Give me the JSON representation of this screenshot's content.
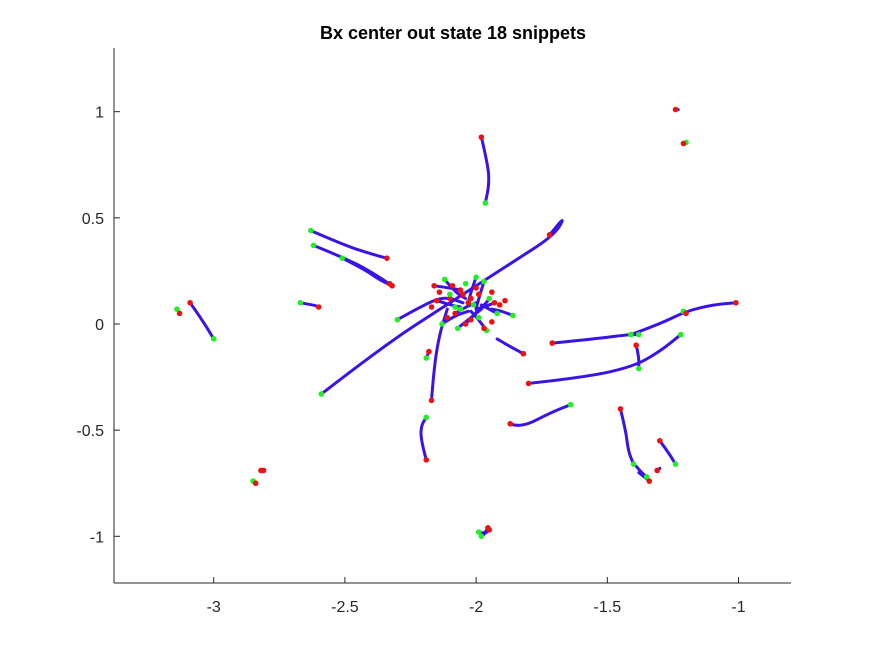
{
  "chart_data": {
    "type": "line",
    "title": "Bx  center out state 18 snippets",
    "xlabel": "",
    "ylabel": "",
    "xlim": [
      -3.38,
      -0.8
    ],
    "ylim": [
      -1.22,
      1.3
    ],
    "xticks": [
      -3,
      -2.5,
      -2,
      -1.5,
      -1
    ],
    "yticks": [
      -1,
      -0.5,
      0,
      0.5,
      1
    ],
    "xtick_labels": [
      "-3",
      "-2.5",
      "-2",
      "-1.5",
      "-1"
    ],
    "ytick_labels": [
      "-1",
      "-0.5",
      "0",
      "0.5",
      "1"
    ],
    "grid": false,
    "box": "left-bottom axes only",
    "colors": {
      "trajectory": "#3a14e6",
      "start_marker": "#22ee22",
      "end_marker": "#ee1111",
      "axis": "#262626"
    },
    "series": [
      {
        "points": [
          [
            -1.98,
            0.88
          ],
          [
            -1.955,
            0.75
          ],
          [
            -1.95,
            0.66
          ],
          [
            -1.965,
            0.57
          ]
        ]
      },
      {
        "points": [
          [
            -2.63,
            0.44
          ],
          [
            -2.5,
            0.37
          ],
          [
            -2.4,
            0.33
          ],
          [
            -2.34,
            0.31
          ]
        ]
      },
      {
        "points": [
          [
            -2.62,
            0.37
          ],
          [
            -2.48,
            0.3
          ],
          [
            -2.38,
            0.23
          ],
          [
            -2.32,
            0.18
          ]
        ]
      },
      {
        "points": [
          [
            -2.51,
            0.31
          ],
          [
            -2.43,
            0.26
          ],
          [
            -2.37,
            0.21
          ],
          [
            -2.33,
            0.185
          ]
        ]
      },
      {
        "points": [
          [
            -2.59,
            -0.33
          ],
          [
            -2.35,
            -0.1
          ],
          [
            -2.1,
            0.1
          ],
          [
            -1.85,
            0.3
          ],
          [
            -1.7,
            0.42
          ],
          [
            -1.66,
            0.51
          ],
          [
            -1.72,
            0.42
          ]
        ]
      },
      {
        "points": [
          [
            -2.67,
            0.1
          ],
          [
            -2.62,
            0.09
          ],
          [
            -2.6,
            0.08
          ]
        ]
      },
      {
        "points": [
          [
            -3.09,
            0.1
          ],
          [
            -3.05,
            0.03
          ],
          [
            -3.0,
            -0.07
          ]
        ]
      },
      {
        "points": [
          [
            -3.14,
            0.07
          ],
          [
            -3.13,
            0.05
          ]
        ]
      },
      {
        "points": [
          [
            -2.3,
            0.02
          ],
          [
            -2.2,
            0.09
          ],
          [
            -2.12,
            0.13
          ],
          [
            -2.05,
            0.1
          ]
        ]
      },
      {
        "points": [
          [
            -2.19,
            -0.16
          ],
          [
            -2.18,
            -0.13
          ]
        ]
      },
      {
        "points": [
          [
            -2.17,
            -0.36
          ],
          [
            -2.16,
            -0.2
          ],
          [
            -2.14,
            -0.05
          ],
          [
            -2.11,
            0.07
          ]
        ]
      },
      {
        "points": [
          [
            -2.19,
            -0.64
          ],
          [
            -2.21,
            -0.55
          ],
          [
            -2.21,
            -0.48
          ],
          [
            -2.19,
            -0.44
          ]
        ]
      },
      {
        "points": [
          [
            -1.82,
            -0.14
          ],
          [
            -1.88,
            -0.1
          ],
          [
            -1.92,
            -0.07
          ]
        ]
      },
      {
        "points": [
          [
            -1.87,
            -0.47
          ],
          [
            -1.83,
            -0.49
          ],
          [
            -1.72,
            -0.42
          ],
          [
            -1.64,
            -0.38
          ]
        ]
      },
      {
        "points": [
          [
            -1.8,
            -0.28
          ],
          [
            -1.58,
            -0.25
          ],
          [
            -1.4,
            -0.2
          ],
          [
            -1.3,
            -0.13
          ],
          [
            -1.22,
            -0.05
          ]
        ]
      },
      {
        "points": [
          [
            -1.71,
            -0.09
          ],
          [
            -1.55,
            -0.07
          ],
          [
            -1.42,
            -0.05
          ],
          [
            -1.38,
            -0.05
          ]
        ]
      },
      {
        "points": [
          [
            -1.41,
            -0.05
          ],
          [
            -1.3,
            0.0
          ],
          [
            -1.2,
            0.06
          ],
          [
            -1.1,
            0.09
          ],
          [
            -1.01,
            0.1
          ]
        ]
      },
      {
        "points": [
          [
            -1.39,
            -0.1
          ],
          [
            -1.38,
            -0.15
          ],
          [
            -1.38,
            -0.21
          ]
        ]
      },
      {
        "points": [
          [
            -1.21,
            0.06
          ],
          [
            -1.2,
            0.05
          ]
        ]
      },
      {
        "points": [
          [
            -1.45,
            -0.4
          ],
          [
            -1.43,
            -0.5
          ],
          [
            -1.42,
            -0.6
          ],
          [
            -1.4,
            -0.66
          ]
        ]
      },
      {
        "points": [
          [
            -1.39,
            -0.67
          ],
          [
            -1.37,
            -0.7
          ],
          [
            -1.35,
            -0.72
          ]
        ]
      },
      {
        "points": [
          [
            -1.38,
            -0.7
          ],
          [
            -1.36,
            -0.72
          ],
          [
            -1.34,
            -0.74
          ]
        ]
      },
      {
        "points": [
          [
            -1.3,
            -0.55
          ],
          [
            -1.27,
            -0.6
          ],
          [
            -1.24,
            -0.66
          ]
        ]
      },
      {
        "points": [
          [
            -1.31,
            -0.69
          ],
          [
            -1.3,
            -0.68
          ]
        ]
      },
      {
        "points": [
          [
            -2.85,
            -0.74
          ],
          [
            -2.84,
            -0.75
          ]
        ]
      },
      {
        "points": [
          [
            -2.82,
            -0.69
          ],
          [
            -2.81,
            -0.69
          ]
        ]
      },
      {
        "points": [
          [
            -1.99,
            -0.98
          ],
          [
            -1.97,
            -0.99
          ],
          [
            -1.955,
            -0.96
          ]
        ]
      },
      {
        "points": [
          [
            -1.98,
            -1.0
          ],
          [
            -1.96,
            -0.98
          ],
          [
            -1.95,
            -0.97
          ]
        ]
      },
      {
        "points": [
          [
            -1.24,
            1.01
          ],
          [
            -1.23,
            1.01
          ]
        ]
      },
      {
        "points": [
          [
            -1.2,
            0.855
          ],
          [
            -1.21,
            0.85
          ]
        ]
      },
      {
        "points": [
          [
            -2.16,
            0.18
          ],
          [
            -2.1,
            0.17
          ],
          [
            -2.06,
            0.16
          ]
        ]
      },
      {
        "points": [
          [
            -2.12,
            0.21
          ],
          [
            -2.08,
            0.15
          ],
          [
            -2.04,
            0.12
          ]
        ]
      },
      {
        "points": [
          [
            -2.0,
            0.22
          ],
          [
            -2.02,
            0.15
          ],
          [
            -2.03,
            0.1
          ]
        ]
      },
      {
        "points": [
          [
            -1.97,
            0.2
          ],
          [
            -1.99,
            0.12
          ],
          [
            -2.0,
            0.07
          ]
        ]
      },
      {
        "points": [
          [
            -2.08,
            0.05
          ],
          [
            -2.04,
            0.08
          ],
          [
            -2.0,
            0.1
          ]
        ]
      },
      {
        "points": [
          [
            -2.13,
            0.0
          ],
          [
            -2.08,
            0.04
          ],
          [
            -2.03,
            0.06
          ]
        ]
      },
      {
        "points": [
          [
            -2.07,
            -0.02
          ],
          [
            -2.02,
            0.03
          ],
          [
            -1.98,
            0.07
          ]
        ]
      },
      {
        "points": [
          [
            -1.96,
            -0.03
          ],
          [
            -1.99,
            0.02
          ],
          [
            -2.02,
            0.06
          ]
        ]
      },
      {
        "points": [
          [
            -1.93,
            0.1
          ],
          [
            -1.97,
            0.08
          ],
          [
            -2.0,
            0.07
          ]
        ]
      },
      {
        "points": [
          [
            -1.92,
            0.05
          ],
          [
            -1.95,
            0.07
          ],
          [
            -1.98,
            0.09
          ]
        ]
      },
      {
        "points": [
          [
            -2.04,
            0.0
          ],
          [
            -2.01,
            0.04
          ],
          [
            -1.99,
            0.07
          ]
        ]
      },
      {
        "points": [
          [
            -1.95,
            0.12
          ],
          [
            -1.96,
            0.1
          ],
          [
            -1.98,
            0.08
          ]
        ]
      },
      {
        "points": [
          [
            -1.86,
            0.04
          ],
          [
            -1.9,
            0.06
          ],
          [
            -1.94,
            0.07
          ]
        ]
      },
      {
        "points": [
          [
            -2.15,
            0.11
          ],
          [
            -2.1,
            0.09
          ],
          [
            -2.06,
            0.08
          ]
        ]
      }
    ],
    "markers": [
      {
        "x": -1.98,
        "y": 0.88,
        "kind": "end"
      },
      {
        "x": -1.965,
        "y": 0.57,
        "kind": "start"
      },
      {
        "x": -2.63,
        "y": 0.44,
        "kind": "start"
      },
      {
        "x": -2.34,
        "y": 0.31,
        "kind": "end"
      },
      {
        "x": -2.62,
        "y": 0.37,
        "kind": "start"
      },
      {
        "x": -2.32,
        "y": 0.18,
        "kind": "end"
      },
      {
        "x": -2.51,
        "y": 0.31,
        "kind": "start"
      },
      {
        "x": -2.33,
        "y": 0.19,
        "kind": "end"
      },
      {
        "x": -2.59,
        "y": -0.33,
        "kind": "start"
      },
      {
        "x": -1.72,
        "y": 0.42,
        "kind": "end"
      },
      {
        "x": -2.67,
        "y": 0.1,
        "kind": "start"
      },
      {
        "x": -2.6,
        "y": 0.08,
        "kind": "end"
      },
      {
        "x": -3.09,
        "y": 0.1,
        "kind": "end"
      },
      {
        "x": -3.0,
        "y": -0.07,
        "kind": "start"
      },
      {
        "x": -3.14,
        "y": 0.07,
        "kind": "start"
      },
      {
        "x": -3.13,
        "y": 0.05,
        "kind": "end"
      },
      {
        "x": -2.3,
        "y": 0.02,
        "kind": "start"
      },
      {
        "x": -2.19,
        "y": -0.16,
        "kind": "start"
      },
      {
        "x": -2.18,
        "y": -0.13,
        "kind": "end"
      },
      {
        "x": -2.17,
        "y": -0.36,
        "kind": "end"
      },
      {
        "x": -2.19,
        "y": -0.64,
        "kind": "end"
      },
      {
        "x": -2.19,
        "y": -0.44,
        "kind": "start"
      },
      {
        "x": -1.82,
        "y": -0.14,
        "kind": "end"
      },
      {
        "x": -1.87,
        "y": -0.47,
        "kind": "end"
      },
      {
        "x": -1.64,
        "y": -0.38,
        "kind": "start"
      },
      {
        "x": -1.8,
        "y": -0.28,
        "kind": "end"
      },
      {
        "x": -1.22,
        "y": -0.05,
        "kind": "start"
      },
      {
        "x": -1.71,
        "y": -0.09,
        "kind": "end"
      },
      {
        "x": -1.41,
        "y": -0.05,
        "kind": "start"
      },
      {
        "x": -1.38,
        "y": -0.05,
        "kind": "start"
      },
      {
        "x": -1.01,
        "y": 0.1,
        "kind": "end"
      },
      {
        "x": -1.39,
        "y": -0.1,
        "kind": "end"
      },
      {
        "x": -1.38,
        "y": -0.21,
        "kind": "start"
      },
      {
        "x": -1.21,
        "y": 0.06,
        "kind": "start"
      },
      {
        "x": -1.2,
        "y": 0.05,
        "kind": "end"
      },
      {
        "x": -1.45,
        "y": -0.4,
        "kind": "end"
      },
      {
        "x": -1.4,
        "y": -0.66,
        "kind": "start"
      },
      {
        "x": -1.35,
        "y": -0.72,
        "kind": "start"
      },
      {
        "x": -1.34,
        "y": -0.74,
        "kind": "end"
      },
      {
        "x": -1.3,
        "y": -0.55,
        "kind": "end"
      },
      {
        "x": -1.24,
        "y": -0.66,
        "kind": "start"
      },
      {
        "x": -1.31,
        "y": -0.69,
        "kind": "end"
      },
      {
        "x": -2.85,
        "y": -0.74,
        "kind": "start"
      },
      {
        "x": -2.84,
        "y": -0.75,
        "kind": "end"
      },
      {
        "x": -2.82,
        "y": -0.69,
        "kind": "end"
      },
      {
        "x": -2.81,
        "y": -0.69,
        "kind": "end"
      },
      {
        "x": -1.99,
        "y": -0.98,
        "kind": "start"
      },
      {
        "x": -1.98,
        "y": -1.0,
        "kind": "start"
      },
      {
        "x": -1.955,
        "y": -0.96,
        "kind": "end"
      },
      {
        "x": -1.95,
        "y": -0.97,
        "kind": "end"
      },
      {
        "x": -1.24,
        "y": 1.01,
        "kind": "end"
      },
      {
        "x": -1.2,
        "y": 0.855,
        "kind": "start"
      },
      {
        "x": -1.21,
        "y": 0.85,
        "kind": "end"
      },
      {
        "x": -2.16,
        "y": 0.18,
        "kind": "end"
      },
      {
        "x": -2.12,
        "y": 0.21,
        "kind": "start"
      },
      {
        "x": -2.06,
        "y": 0.16,
        "kind": "end"
      },
      {
        "x": -2.0,
        "y": 0.22,
        "kind": "start"
      },
      {
        "x": -1.97,
        "y": 0.2,
        "kind": "start"
      },
      {
        "x": -2.03,
        "y": 0.1,
        "kind": "end"
      },
      {
        "x": -2.08,
        "y": 0.05,
        "kind": "end"
      },
      {
        "x": -2.13,
        "y": 0.0,
        "kind": "start"
      },
      {
        "x": -2.07,
        "y": -0.02,
        "kind": "start"
      },
      {
        "x": -1.96,
        "y": -0.03,
        "kind": "start"
      },
      {
        "x": -1.93,
        "y": 0.1,
        "kind": "end"
      },
      {
        "x": -1.92,
        "y": 0.05,
        "kind": "start"
      },
      {
        "x": -2.04,
        "y": 0.0,
        "kind": "end"
      },
      {
        "x": -1.95,
        "y": 0.12,
        "kind": "start"
      },
      {
        "x": -1.86,
        "y": 0.04,
        "kind": "start"
      },
      {
        "x": -2.15,
        "y": 0.11,
        "kind": "end"
      },
      {
        "x": -2.1,
        "y": 0.12,
        "kind": "end"
      },
      {
        "x": -2.02,
        "y": 0.12,
        "kind": "end"
      },
      {
        "x": -1.99,
        "y": 0.14,
        "kind": "end"
      },
      {
        "x": -2.08,
        "y": 0.08,
        "kind": "start"
      },
      {
        "x": -2.05,
        "y": 0.14,
        "kind": "end"
      },
      {
        "x": -2.02,
        "y": 0.02,
        "kind": "end"
      },
      {
        "x": -1.99,
        "y": 0.03,
        "kind": "start"
      },
      {
        "x": -1.91,
        "y": 0.09,
        "kind": "end"
      },
      {
        "x": -1.89,
        "y": 0.11,
        "kind": "end"
      },
      {
        "x": -2.11,
        "y": 0.03,
        "kind": "end"
      },
      {
        "x": -1.94,
        "y": 0.01,
        "kind": "end"
      },
      {
        "x": -2.06,
        "y": 0.07,
        "kind": "start"
      },
      {
        "x": -2.0,
        "y": 0.17,
        "kind": "end"
      },
      {
        "x": -2.14,
        "y": 0.15,
        "kind": "end"
      },
      {
        "x": -1.97,
        "y": -0.02,
        "kind": "end"
      },
      {
        "x": -2.09,
        "y": 0.18,
        "kind": "end"
      },
      {
        "x": -2.1,
        "y": 0.14,
        "kind": "start"
      },
      {
        "x": -2.04,
        "y": 0.19,
        "kind": "start"
      },
      {
        "x": -2.17,
        "y": 0.08,
        "kind": "end"
      },
      {
        "x": -2.01,
        "y": 0.09,
        "kind": "start"
      },
      {
        "x": -1.94,
        "y": 0.15,
        "kind": "end"
      }
    ]
  }
}
